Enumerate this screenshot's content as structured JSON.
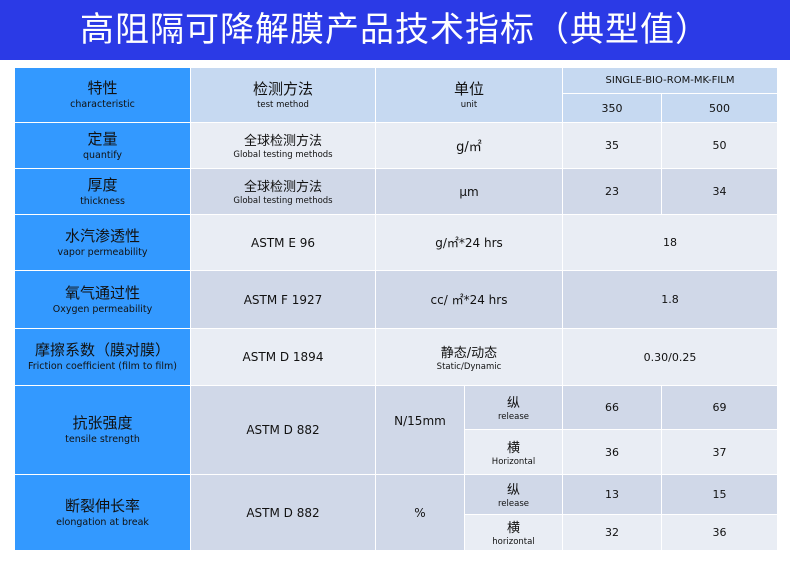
{
  "title": "高阻隔可降解膜产品技术指标（典型值）",
  "header": {
    "char_zh": "特性",
    "char_en": "characteristic",
    "method_zh": "检测方法",
    "method_en": "test method",
    "unit_zh": "单位",
    "unit_en": "unit",
    "product": "SINGLE-BIO-ROM-MK-FILM",
    "grade1": "350",
    "grade2": "500"
  },
  "rows": [
    {
      "zh": "定量",
      "en": "quantify",
      "method_zh": "全球检测方法",
      "method_en": "Global testing methods",
      "unit": "g/㎡",
      "v1": "35",
      "v2": "50"
    },
    {
      "zh": "厚度",
      "en": "thickness",
      "method_zh": "全球检测方法",
      "method_en": "Global testing methods",
      "unit": "μm",
      "v1": "23",
      "v2": "34"
    },
    {
      "zh": "水汽渗透性",
      "en": "vapor permeability",
      "method": "ASTM E 96",
      "unit": "g/㎡*24 hrs",
      "v": "18"
    },
    {
      "zh": "氧气通过性",
      "en": "Oxygen permeability",
      "method": "ASTM F 1927",
      "unit": "cc/ ㎡*24 hrs",
      "v": "1.8"
    },
    {
      "zh": "摩擦系数（膜对膜）",
      "en": "Friction coefficient (film to film)",
      "method": "ASTM D 1894",
      "unit_zh": "静态/动态",
      "unit_en": "Static/Dynamic",
      "v": "0.30/0.25"
    },
    {
      "zh": "抗张强度",
      "en": "tensile strength",
      "method": "ASTM D 882",
      "unit": "N/15mm",
      "sub": [
        {
          "zh": "纵",
          "en": "release",
          "v1": "66",
          "v2": "69"
        },
        {
          "zh": "横",
          "en": "Horizontal",
          "v1": "36",
          "v2": "37"
        }
      ]
    },
    {
      "zh": "断裂伸长率",
      "en": "elongation at break",
      "method": "ASTM D 882",
      "unit": "%",
      "sub": [
        {
          "zh": "纵",
          "en": "release",
          "v1": "13",
          "v2": "15"
        },
        {
          "zh": "横",
          "en": "horizontal",
          "v1": "32",
          "v2": "36"
        }
      ]
    }
  ],
  "colors": {
    "title_bar": "#2b3ae6",
    "key_column": "#3399ff",
    "header": "#c6d9f1",
    "row_light": "#e9edf4",
    "row_dark": "#d0d8e8"
  }
}
